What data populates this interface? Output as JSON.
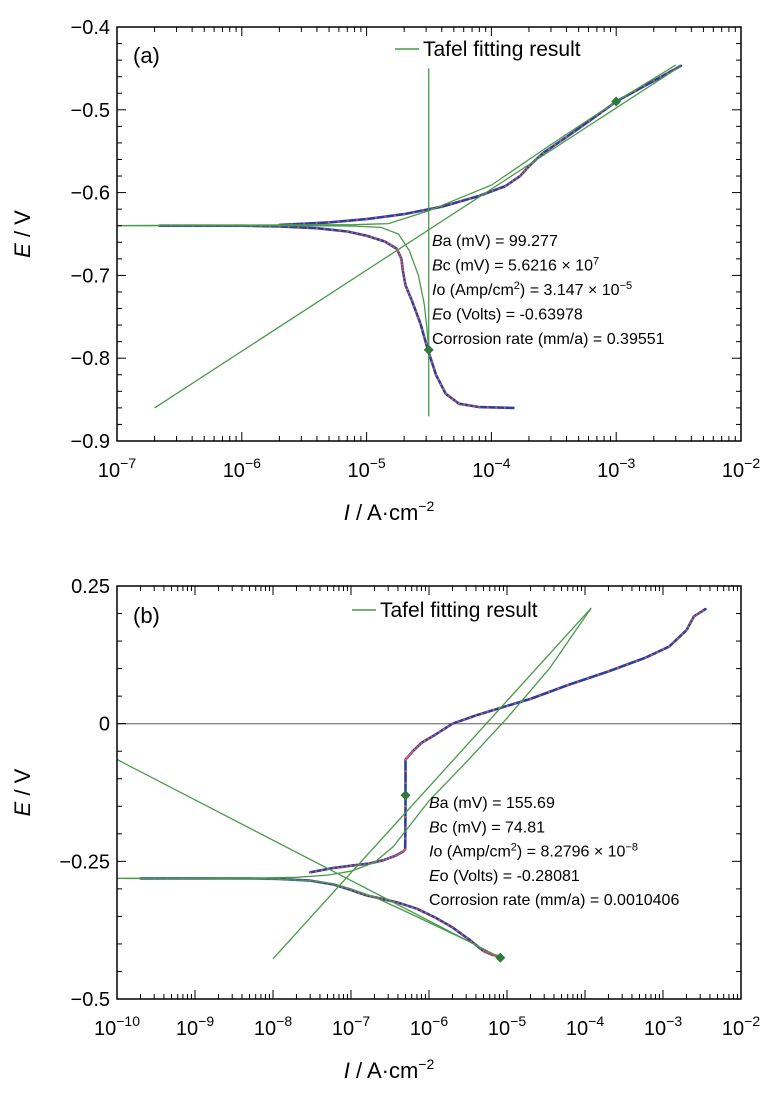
{
  "chart_data": [
    {
      "type": "line",
      "panel_label": "(a)",
      "xscale": "log",
      "xlim": [
        1e-07,
        0.01
      ],
      "ylim": [
        -0.9,
        -0.4
      ],
      "x_tick_labels": [
        {
          "v": 1e-07,
          "base": "10",
          "exp": "−7"
        },
        {
          "v": 1e-06,
          "base": "10",
          "exp": "−6"
        },
        {
          "v": 1e-05,
          "base": "10",
          "exp": "−5"
        },
        {
          "v": 0.0001,
          "base": "10",
          "exp": "−4"
        },
        {
          "v": 0.001,
          "base": "10",
          "exp": "−3"
        },
        {
          "v": 0.01,
          "base": "10",
          "exp": "−2"
        }
      ],
      "y_tick_labels": [
        {
          "v": -0.4,
          "t": "−0.4"
        },
        {
          "v": -0.5,
          "t": "−0.5"
        },
        {
          "v": -0.6,
          "t": "−0.6"
        },
        {
          "v": -0.7,
          "t": "−0.7"
        },
        {
          "v": -0.8,
          "t": "−0.8"
        },
        {
          "v": -0.9,
          "t": "−0.9"
        }
      ],
      "xlabel": {
        "italic": "I",
        "rest": " / A·cm",
        "exp": "−2"
      },
      "ylabel": {
        "italic": "E",
        "rest": " / V"
      },
      "legend": {
        "label": "Tafel fitting result",
        "color": "#4a9a4a",
        "position": "top"
      },
      "fit_results": [
        {
          "italic": "B",
          "text": "a (mV) = 99.277"
        },
        {
          "italic": "B",
          "text": "c (mV) = 5.6216 × 10",
          "sup": "7"
        },
        {
          "italic": "I",
          "text": "o (Amp/cm",
          "sup": "2",
          "text2": ") = 3.147 × 10",
          "sup2": "−5"
        },
        {
          "italic": "E",
          "text": "o (Volts) = -0.63978"
        },
        {
          "text": "Corrosion rate (mm/a) = 0.39551"
        }
      ],
      "colors": {
        "measured": "#2b3f9e",
        "measured_points": "#e05c5c",
        "fit": "#4a9a4a",
        "marker": "#2f7a3a"
      },
      "series": [
        {
          "kind": "measured",
          "points": [
            [
              2.2e-07,
              -0.64
            ],
            [
              5e-07,
              -0.64
            ],
            [
              1e-06,
              -0.64
            ],
            [
              2e-06,
              -0.641
            ],
            [
              4e-06,
              -0.643
            ],
            [
              7e-06,
              -0.647
            ],
            [
              1e-05,
              -0.652
            ],
            [
              1.4e-05,
              -0.659
            ],
            [
              1.75e-05,
              -0.668
            ],
            [
              1.9e-05,
              -0.68
            ],
            [
              1.95e-05,
              -0.694
            ],
            [
              2.05e-05,
              -0.712
            ],
            [
              2.3e-05,
              -0.73
            ],
            [
              2.7e-05,
              -0.758
            ],
            [
              3.1e-05,
              -0.79
            ],
            [
              3.6e-05,
              -0.82
            ],
            [
              4.3e-05,
              -0.843
            ],
            [
              5.5e-05,
              -0.855
            ],
            [
              8e-05,
              -0.859
            ],
            [
              0.00015,
              -0.86
            ]
          ]
        },
        {
          "kind": "measured",
          "points": [
            [
              2e-06,
              -0.639
            ],
            [
              5e-06,
              -0.636
            ],
            [
              1e-05,
              -0.632
            ],
            [
              2e-05,
              -0.626
            ],
            [
              4e-05,
              -0.617
            ],
            [
              8e-05,
              -0.604
            ],
            [
              0.00013,
              -0.592
            ],
            [
              0.00017,
              -0.58
            ],
            [
              0.0002,
              -0.568
            ],
            [
              0.00026,
              -0.552
            ],
            [
              0.0004,
              -0.533
            ],
            [
              0.0007,
              -0.507
            ],
            [
              0.001,
              -0.49
            ],
            [
              0.002,
              -0.465
            ],
            [
              0.0033,
              -0.447
            ]
          ]
        },
        {
          "kind": "fit",
          "points": [
            [
              1e-07,
              -0.6398
            ],
            [
              4e-06,
              -0.64
            ],
            [
              8e-06,
              -0.6405
            ],
            [
              1.3e-05,
              -0.642
            ],
            [
              1.8e-05,
              -0.65
            ],
            [
              2.2e-05,
              -0.67
            ],
            [
              2.6e-05,
              -0.7
            ],
            [
              2.9e-05,
              -0.735
            ],
            [
              3.05e-05,
              -0.765
            ],
            [
              3.147e-05,
              -0.79
            ]
          ]
        },
        {
          "kind": "fit",
          "points": [
            [
              1e-07,
              -0.6398
            ],
            [
              8e-06,
              -0.6388
            ],
            [
              1.5e-05,
              -0.6375
            ],
            [
              3.147e-05,
              -0.622
            ],
            [
              0.0001,
              -0.591
            ],
            [
              0.0003,
              -0.542
            ],
            [
              0.001,
              -0.49
            ],
            [
              0.003,
              -0.446
            ]
          ]
        },
        {
          "kind": "fit",
          "points": [
            [
              2e-07,
              -0.86
            ],
            [
              0.0033,
              -0.447
            ]
          ]
        },
        {
          "kind": "fit",
          "points": [
            [
              3.147e-05,
              -0.45
            ],
            [
              3.147e-05,
              -0.87
            ]
          ]
        }
      ],
      "markers": [
        [
          0.001,
          -0.49
        ],
        [
          3.147e-05,
          -0.79
        ]
      ]
    },
    {
      "type": "line",
      "panel_label": "(b)",
      "xscale": "log",
      "xlim": [
        1e-10,
        0.01
      ],
      "ylim": [
        -0.5,
        0.25
      ],
      "x_tick_labels": [
        {
          "v": 1e-10,
          "base": "10",
          "exp": "−10"
        },
        {
          "v": 1e-09,
          "base": "10",
          "exp": "−9"
        },
        {
          "v": 1e-08,
          "base": "10",
          "exp": "−8"
        },
        {
          "v": 1e-07,
          "base": "10",
          "exp": "−7"
        },
        {
          "v": 1e-06,
          "base": "10",
          "exp": "−6"
        },
        {
          "v": 1e-05,
          "base": "10",
          "exp": "−5"
        },
        {
          "v": 0.0001,
          "base": "10",
          "exp": "−4"
        },
        {
          "v": 0.001,
          "base": "10",
          "exp": "−3"
        },
        {
          "v": 0.01,
          "base": "10",
          "exp": "−2"
        }
      ],
      "y_tick_labels": [
        {
          "v": 0.25,
          "t": "0.25"
        },
        {
          "v": 0,
          "t": "0"
        },
        {
          "v": -0.25,
          "t": "−0.25"
        },
        {
          "v": -0.5,
          "t": "−0.5"
        }
      ],
      "zero_line": 0,
      "xlabel": {
        "italic": "I",
        "rest": " / A·cm",
        "exp": "−2"
      },
      "ylabel": {
        "italic": "E",
        "rest": " / V"
      },
      "legend": {
        "label": "Tafel fitting result",
        "color": "#4a9a4a",
        "position": "top"
      },
      "fit_results": [
        {
          "italic": "B",
          "text": "a (mV) = 155.69"
        },
        {
          "italic": "B",
          "text": "c (mV) = 74.81"
        },
        {
          "italic": "I",
          "text": "o (Amp/cm",
          "sup": "2",
          "text2": ") = 8.2796 × 10",
          "sup2": "−8"
        },
        {
          "italic": "E",
          "text": "o (Volts) = -0.28081"
        },
        {
          "text": "Corrosion rate (mm/a) = 0.0010406"
        }
      ],
      "colors": {
        "measured": "#2b3f9e",
        "measured_points": "#e05c5c",
        "fit": "#4a9a4a",
        "marker": "#2f7a3a",
        "zero": "#888888"
      },
      "series": [
        {
          "kind": "measured",
          "points": [
            [
              2e-10,
              -0.281
            ],
            [
              1e-09,
              -0.281
            ],
            [
              5e-09,
              -0.281
            ],
            [
              1.2e-08,
              -0.282
            ],
            [
              3e-08,
              -0.285
            ],
            [
              6e-08,
              -0.292
            ],
            [
              1e-07,
              -0.302
            ],
            [
              1.6e-07,
              -0.312
            ],
            [
              2.5e-07,
              -0.318
            ],
            [
              4e-07,
              -0.325
            ],
            [
              7e-07,
              -0.336
            ],
            [
              1.2e-06,
              -0.352
            ],
            [
              2e-06,
              -0.37
            ],
            [
              3.5e-06,
              -0.395
            ],
            [
              5e-06,
              -0.413
            ],
            [
              6.5e-06,
              -0.42
            ],
            [
              8.2e-06,
              -0.423
            ]
          ]
        },
        {
          "kind": "measured",
          "points": [
            [
              3e-08,
              -0.27
            ],
            [
              6e-08,
              -0.262
            ],
            [
              1e-07,
              -0.258
            ],
            [
              1.7e-07,
              -0.254
            ],
            [
              2.6e-07,
              -0.248
            ],
            [
              3.7e-07,
              -0.24
            ],
            [
              4.7e-07,
              -0.232
            ],
            [
              4.95e-07,
              -0.228
            ],
            [
              5e-07,
              -0.15
            ],
            [
              5e-07,
              -0.065
            ],
            [
              5.4e-07,
              -0.06
            ],
            [
              6.2e-07,
              -0.05
            ],
            [
              8e-07,
              -0.035
            ],
            [
              1.2e-06,
              -0.02
            ],
            [
              2e-06,
              0.0
            ],
            [
              4e-06,
              0.015
            ],
            [
              8e-06,
              0.028
            ],
            [
              2e-05,
              0.045
            ],
            [
              6e-05,
              0.07
            ],
            [
              0.0002,
              0.095
            ],
            [
              0.0006,
              0.12
            ],
            [
              0.0012,
              0.14
            ],
            [
              0.002,
              0.17
            ],
            [
              0.0025,
              0.195
            ],
            [
              0.0035,
              0.208
            ]
          ]
        },
        {
          "kind": "fit",
          "points": [
            [
              1e-10,
              -0.281
            ],
            [
              5e-09,
              -0.2805
            ],
            [
              2e-08,
              -0.279
            ],
            [
              5e-08,
              -0.275
            ],
            [
              1e-07,
              -0.268
            ],
            [
              2e-07,
              -0.252
            ],
            [
              3.5e-07,
              -0.223
            ],
            [
              5e-07,
              -0.195
            ],
            [
              1e-06,
              -0.14
            ],
            [
              3e-06,
              -0.07
            ],
            [
              1e-05,
              0.01
            ],
            [
              3.5e-05,
              0.1
            ],
            [
              0.00012,
              0.21
            ]
          ]
        },
        {
          "kind": "fit",
          "points": [
            [
              1e-10,
              -0.281
            ],
            [
              1e-08,
              -0.282
            ],
            [
              3e-08,
              -0.285
            ],
            [
              6e-08,
              -0.291
            ],
            [
              1e-07,
              -0.3
            ],
            [
              2e-07,
              -0.315
            ],
            [
              5e-07,
              -0.341
            ],
            [
              1e-06,
              -0.361
            ],
            [
              3e-06,
              -0.393
            ],
            [
              8.2e-06,
              -0.425
            ]
          ]
        },
        {
          "kind": "fit",
          "points": [
            [
              1e-08,
              -0.427
            ],
            [
              0.00012,
              0.21
            ]
          ]
        },
        {
          "kind": "fit",
          "points": [
            [
              1e-10,
              -0.065
            ],
            [
              8.2e-06,
              -0.425
            ]
          ]
        }
      ],
      "markers": [
        [
          5e-07,
          -0.13
        ],
        [
          8.2e-06,
          -0.425
        ]
      ]
    }
  ]
}
